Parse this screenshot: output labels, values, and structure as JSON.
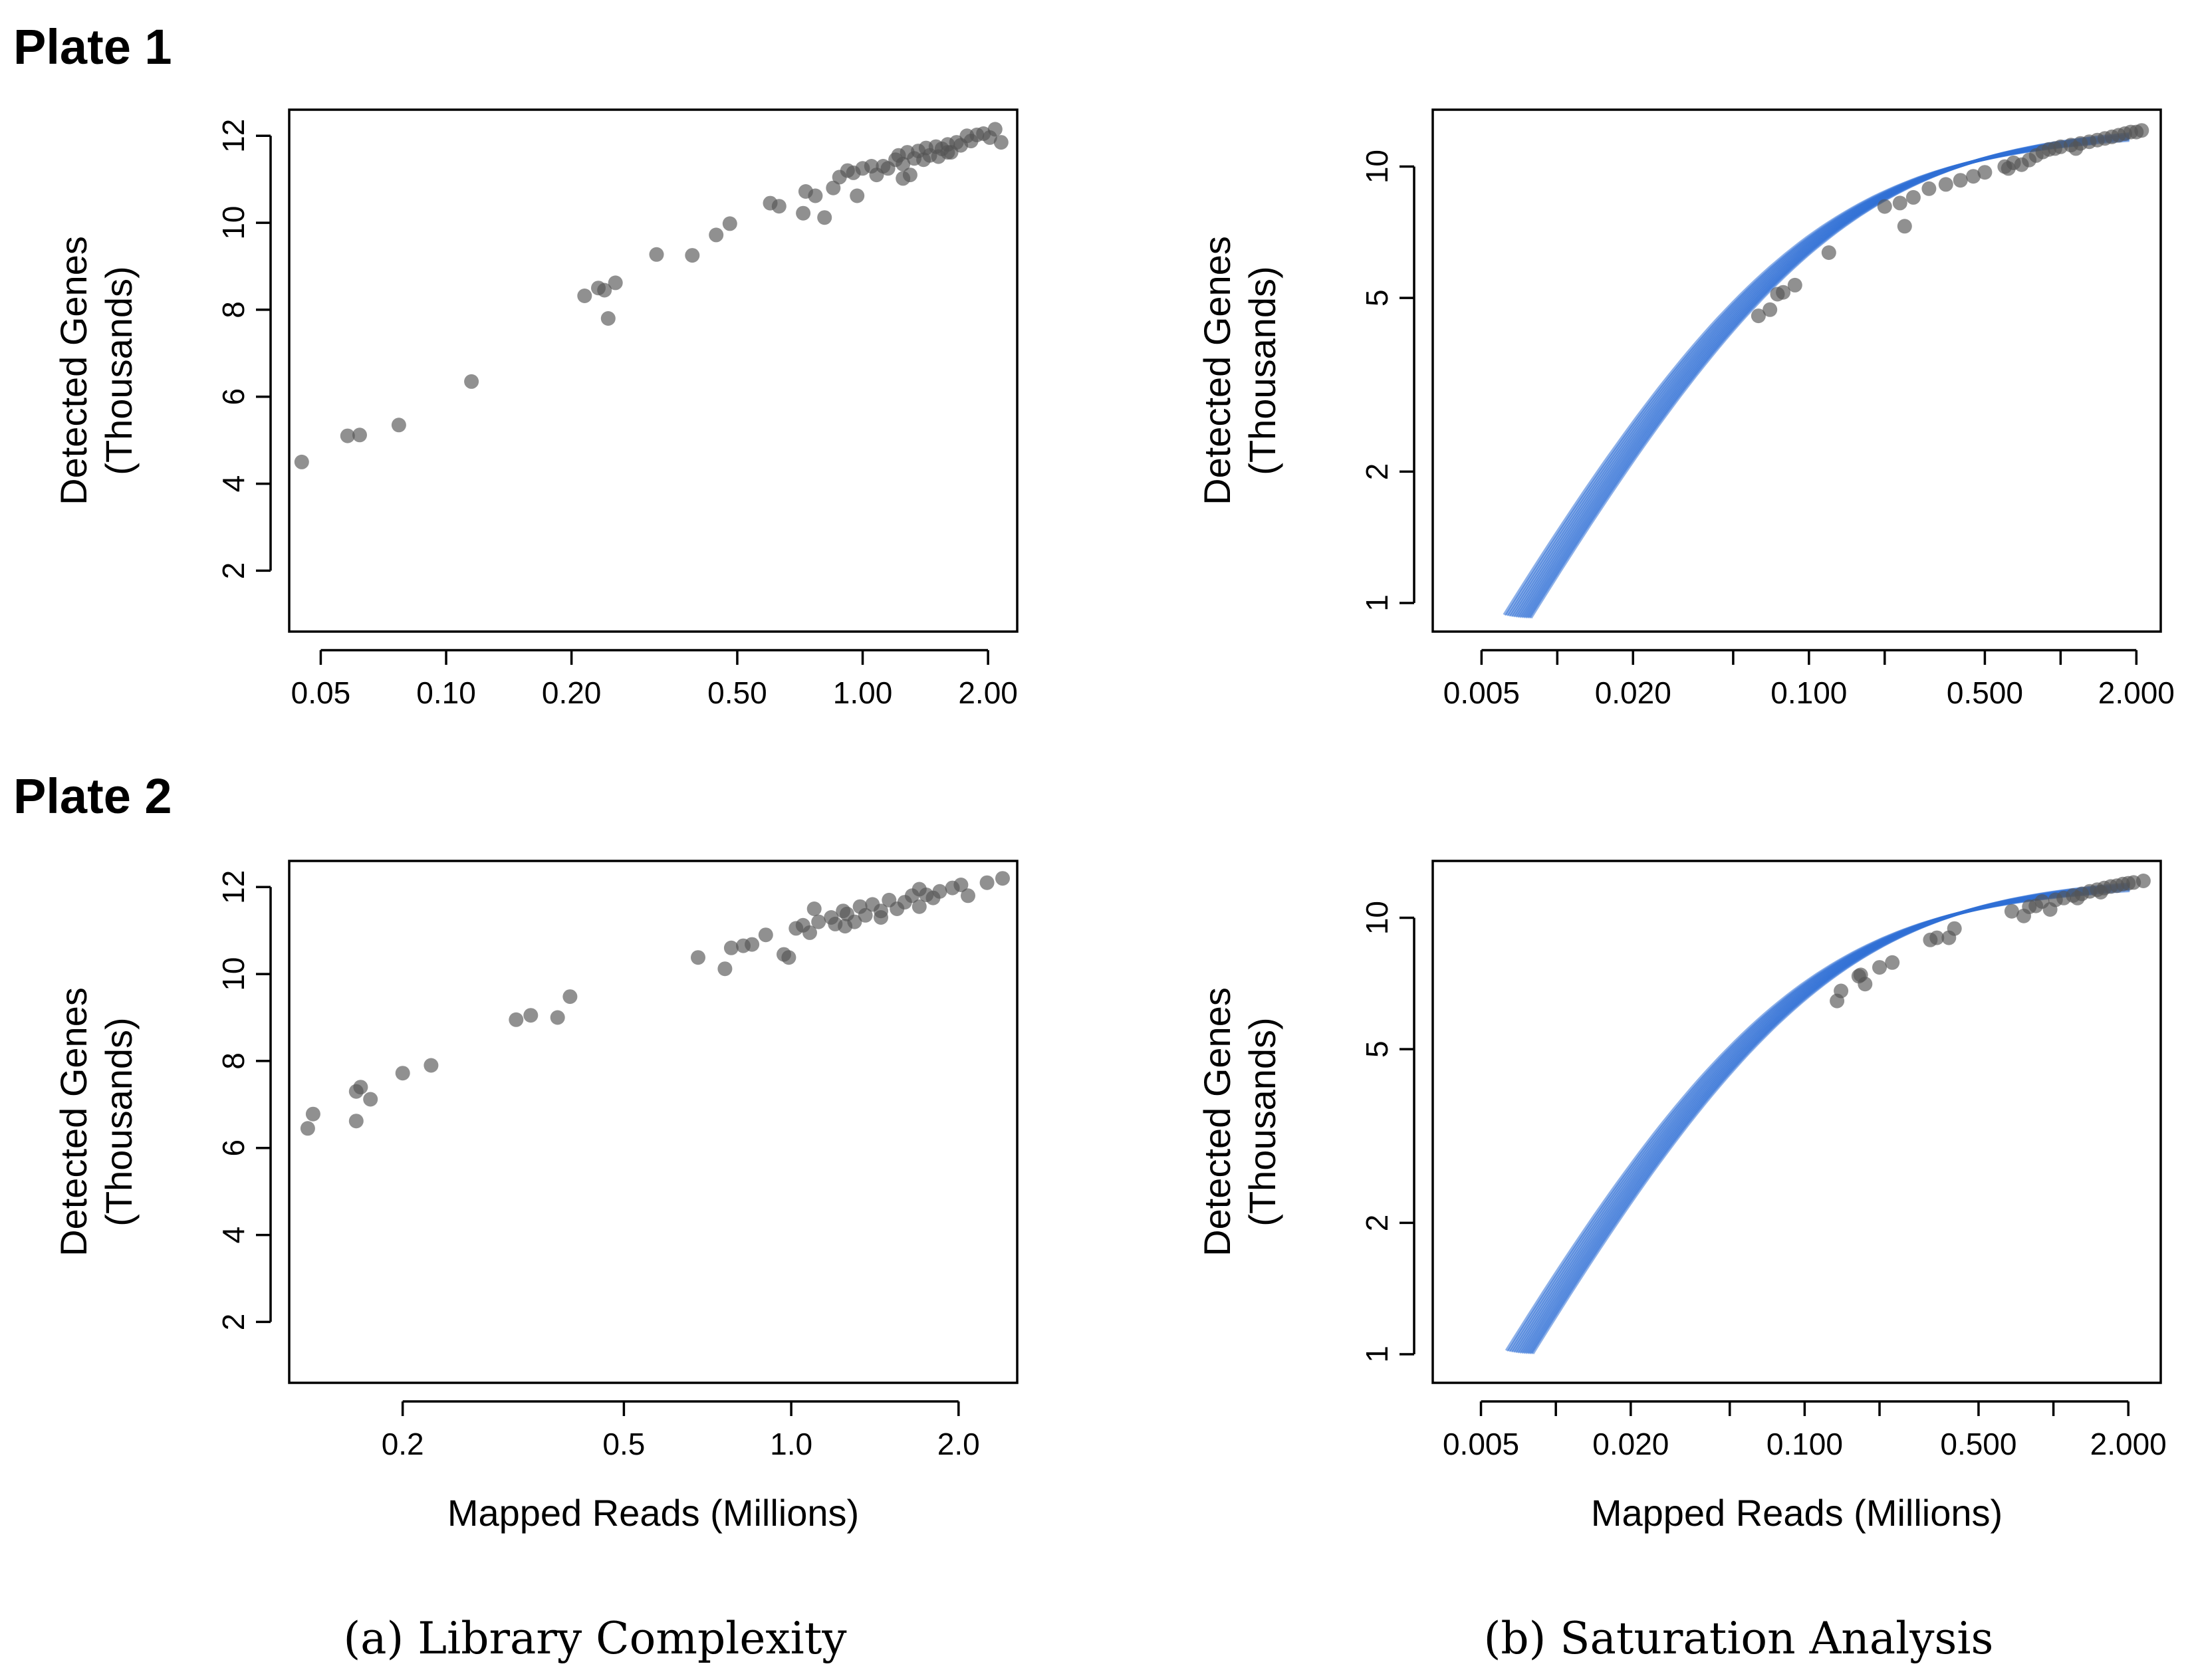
{
  "plates": [
    {
      "title": "Plate 1"
    },
    {
      "title": "Plate 2"
    }
  ],
  "captions": {
    "a": "(a) Library Complexity",
    "b": "(b) Saturation Analysis"
  },
  "colors": {
    "points": "#555555",
    "curves": "#2f6fd6"
  },
  "chart_data": [
    {
      "id": "p1a",
      "type": "scatter",
      "plate": "Plate 1",
      "panel": "Library Complexity",
      "xlabel": "",
      "ylabel": "Detected Genes\n(Thousands)",
      "xscale": "log",
      "xlim": [
        0.042,
        2.35
      ],
      "ylim": [
        0.6,
        12.6
      ],
      "xticks": [
        0.05,
        0.1,
        0.2,
        0.5,
        1.0,
        2.0
      ],
      "xticklabels": [
        "0.05",
        "0.10",
        "0.20",
        "0.50",
        "1.00",
        "2.00"
      ],
      "yticks": [
        2,
        4,
        6,
        8,
        10,
        12
      ],
      "yticklabels": [
        "2",
        "4",
        "6",
        "8",
        "10",
        "12"
      ],
      "points": [
        [
          0.045,
          4.5
        ],
        [
          0.058,
          5.1
        ],
        [
          0.062,
          5.12
        ],
        [
          0.077,
          5.35
        ],
        [
          0.115,
          6.35
        ],
        [
          0.215,
          8.32
        ],
        [
          0.232,
          8.5
        ],
        [
          0.24,
          8.45
        ],
        [
          0.255,
          8.62
        ],
        [
          0.245,
          7.8
        ],
        [
          0.32,
          9.27
        ],
        [
          0.39,
          9.25
        ],
        [
          0.445,
          9.72
        ],
        [
          0.48,
          9.98
        ],
        [
          0.6,
          10.45
        ],
        [
          0.63,
          10.38
        ],
        [
          0.72,
          10.22
        ],
        [
          0.73,
          10.72
        ],
        [
          0.77,
          10.62
        ],
        [
          0.81,
          10.12
        ],
        [
          0.85,
          10.8
        ],
        [
          0.88,
          11.05
        ],
        [
          0.92,
          11.2
        ],
        [
          0.95,
          11.15
        ],
        [
          0.97,
          10.62
        ],
        [
          1.0,
          11.25
        ],
        [
          1.05,
          11.3
        ],
        [
          1.08,
          11.1
        ],
        [
          1.12,
          11.3
        ],
        [
          1.15,
          11.25
        ],
        [
          1.2,
          11.45
        ],
        [
          1.22,
          11.55
        ],
        [
          1.25,
          11.35
        ],
        [
          1.28,
          11.62
        ],
        [
          1.3,
          11.1
        ],
        [
          1.33,
          11.48
        ],
        [
          1.36,
          11.65
        ],
        [
          1.4,
          11.45
        ],
        [
          1.42,
          11.72
        ],
        [
          1.45,
          11.55
        ],
        [
          1.5,
          11.75
        ],
        [
          1.52,
          11.52
        ],
        [
          1.55,
          11.7
        ],
        [
          1.6,
          11.8
        ],
        [
          1.63,
          11.62
        ],
        [
          1.68,
          11.85
        ],
        [
          1.72,
          11.78
        ],
        [
          1.78,
          12.0
        ],
        [
          1.82,
          11.88
        ],
        [
          1.88,
          12.02
        ],
        [
          1.95,
          12.05
        ],
        [
          2.02,
          11.96
        ],
        [
          2.08,
          12.15
        ],
        [
          2.15,
          11.85
        ],
        [
          1.25,
          11.02
        ],
        [
          1.6,
          11.62
        ]
      ]
    },
    {
      "id": "p1b",
      "type": "line",
      "plate": "Plate 1",
      "panel": "Saturation Analysis",
      "xlabel": "",
      "ylabel": "Detected Genes\n(Thousands)",
      "xscale": "log",
      "yscale": "log",
      "xlim": [
        0.0032,
        2.5
      ],
      "ylim": [
        0.86,
        13.5
      ],
      "xticks": [
        0.005,
        0.01,
        0.02,
        0.05,
        0.1,
        0.2,
        0.5,
        1.0,
        2.0
      ],
      "xticklabels": [
        "0.005",
        "",
        "0.020",
        "",
        "0.100",
        "",
        "0.500",
        "",
        "2.000"
      ],
      "yticks": [
        1,
        2,
        5,
        10
      ],
      "yticklabels": [
        "1",
        "2",
        "5",
        "10"
      ],
      "curve": {
        "A": 12.2,
        "B": 0.085,
        "x0": 0.007,
        "spread": 0.07,
        "n": 14
      },
      "points": [
        [
          0.063,
          4.55
        ],
        [
          0.07,
          4.7
        ],
        [
          0.075,
          5.1
        ],
        [
          0.079,
          5.15
        ],
        [
          0.088,
          5.35
        ],
        [
          0.12,
          6.35
        ],
        [
          0.2,
          8.1
        ],
        [
          0.23,
          8.25
        ],
        [
          0.26,
          8.5
        ],
        [
          0.3,
          8.9
        ],
        [
          0.35,
          9.1
        ],
        [
          0.4,
          9.3
        ],
        [
          0.45,
          9.5
        ],
        [
          0.5,
          9.7
        ],
        [
          0.6,
          10.0
        ],
        [
          0.65,
          10.2
        ],
        [
          0.7,
          10.1
        ],
        [
          0.75,
          10.35
        ],
        [
          0.8,
          10.6
        ],
        [
          0.85,
          10.8
        ],
        [
          0.9,
          10.95
        ],
        [
          0.95,
          11.0
        ],
        [
          1.0,
          11.1
        ],
        [
          1.1,
          11.2
        ],
        [
          1.2,
          11.3
        ],
        [
          1.3,
          11.4
        ],
        [
          1.4,
          11.5
        ],
        [
          1.5,
          11.6
        ],
        [
          1.6,
          11.7
        ],
        [
          1.7,
          11.8
        ],
        [
          1.8,
          11.9
        ],
        [
          1.9,
          12.0
        ],
        [
          2.0,
          12.0
        ],
        [
          2.1,
          12.1
        ],
        [
          0.24,
          7.3
        ],
        [
          0.62,
          9.9
        ],
        [
          1.15,
          11.0
        ]
      ]
    },
    {
      "id": "p2a",
      "type": "scatter",
      "plate": "Plate 2",
      "panel": "Library Complexity",
      "xlabel": "Mapped Reads (Millions)",
      "ylabel": "Detected Genes\n(Thousands)",
      "xscale": "log",
      "xlim": [
        0.125,
        2.55
      ],
      "ylim": [
        0.6,
        12.6
      ],
      "xticks": [
        0.2,
        0.5,
        1.0,
        2.0
      ],
      "xticklabels": [
        "0.2",
        "0.5",
        "1.0",
        "2.0"
      ],
      "yticks": [
        2,
        4,
        6,
        8,
        10,
        12
      ],
      "yticklabels": [
        "2",
        "4",
        "6",
        "8",
        "10",
        "12"
      ],
      "points": [
        [
          0.135,
          6.45
        ],
        [
          0.138,
          6.78
        ],
        [
          0.165,
          7.3
        ],
        [
          0.168,
          7.4
        ],
        [
          0.165,
          6.62
        ],
        [
          0.175,
          7.12
        ],
        [
          0.2,
          7.72
        ],
        [
          0.225,
          7.9
        ],
        [
          0.32,
          8.95
        ],
        [
          0.34,
          9.05
        ],
        [
          0.38,
          9.0
        ],
        [
          0.4,
          9.48
        ],
        [
          0.68,
          10.38
        ],
        [
          0.76,
          10.12
        ],
        [
          0.78,
          10.6
        ],
        [
          0.82,
          10.65
        ],
        [
          0.85,
          10.68
        ],
        [
          0.9,
          10.9
        ],
        [
          0.97,
          10.45
        ],
        [
          0.99,
          10.38
        ],
        [
          1.02,
          11.05
        ],
        [
          1.05,
          11.12
        ],
        [
          1.08,
          10.95
        ],
        [
          1.12,
          11.2
        ],
        [
          1.18,
          11.3
        ],
        [
          1.2,
          11.15
        ],
        [
          1.24,
          11.45
        ],
        [
          1.26,
          11.38
        ],
        [
          1.3,
          11.2
        ],
        [
          1.33,
          11.55
        ],
        [
          1.36,
          11.35
        ],
        [
          1.4,
          11.6
        ],
        [
          1.45,
          11.45
        ],
        [
          1.5,
          11.7
        ],
        [
          1.55,
          11.5
        ],
        [
          1.6,
          11.65
        ],
        [
          1.65,
          11.8
        ],
        [
          1.7,
          11.55
        ],
        [
          1.75,
          11.82
        ],
        [
          1.8,
          11.75
        ],
        [
          1.85,
          11.9
        ],
        [
          1.95,
          11.98
        ],
        [
          2.02,
          12.05
        ],
        [
          2.08,
          11.8
        ],
        [
          2.25,
          12.1
        ],
        [
          2.4,
          12.2
        ],
        [
          1.25,
          11.1
        ],
        [
          1.45,
          11.3
        ],
        [
          1.1,
          11.5
        ],
        [
          1.7,
          11.95
        ]
      ]
    },
    {
      "id": "p2b",
      "type": "line",
      "plate": "Plate 2",
      "panel": "Saturation Analysis",
      "xlabel": "Mapped Reads (Millions)",
      "ylabel": "Detected Genes\n(Thousands)",
      "xscale": "log",
      "yscale": "log",
      "xlim": [
        0.0032,
        2.7
      ],
      "ylim": [
        0.86,
        13.5
      ],
      "xticks": [
        0.005,
        0.01,
        0.02,
        0.05,
        0.1,
        0.2,
        0.5,
        1.0,
        2.0
      ],
      "xticklabels": [
        "0.005",
        "",
        "0.020",
        "",
        "0.100",
        "",
        "0.500",
        "",
        "2.000"
      ],
      "yticks": [
        1,
        2,
        5,
        10
      ],
      "yticklabels": [
        "1",
        "2",
        "5",
        "10"
      ],
      "curve": {
        "A": 12.2,
        "B": 0.08,
        "x0": 0.0072,
        "spread": 0.07,
        "n": 14
      },
      "points": [
        [
          0.135,
          6.45
        ],
        [
          0.14,
          6.8
        ],
        [
          0.165,
          7.35
        ],
        [
          0.168,
          7.4
        ],
        [
          0.175,
          7.05
        ],
        [
          0.2,
          7.7
        ],
        [
          0.225,
          7.9
        ],
        [
          0.32,
          8.9
        ],
        [
          0.34,
          9.0
        ],
        [
          0.38,
          9.0
        ],
        [
          0.4,
          9.45
        ],
        [
          0.68,
          10.35
        ],
        [
          0.76,
          10.1
        ],
        [
          0.8,
          10.6
        ],
        [
          0.85,
          10.65
        ],
        [
          0.9,
          10.9
        ],
        [
          0.97,
          10.45
        ],
        [
          1.02,
          11.0
        ],
        [
          1.1,
          11.1
        ],
        [
          1.2,
          11.25
        ],
        [
          1.3,
          11.35
        ],
        [
          1.4,
          11.5
        ],
        [
          1.5,
          11.6
        ],
        [
          1.6,
          11.7
        ],
        [
          1.7,
          11.8
        ],
        [
          1.8,
          11.85
        ],
        [
          1.9,
          11.95
        ],
        [
          2.0,
          12.0
        ],
        [
          2.1,
          12.05
        ],
        [
          2.3,
          12.15
        ],
        [
          1.25,
          11.1
        ],
        [
          1.55,
          11.45
        ]
      ]
    }
  ]
}
